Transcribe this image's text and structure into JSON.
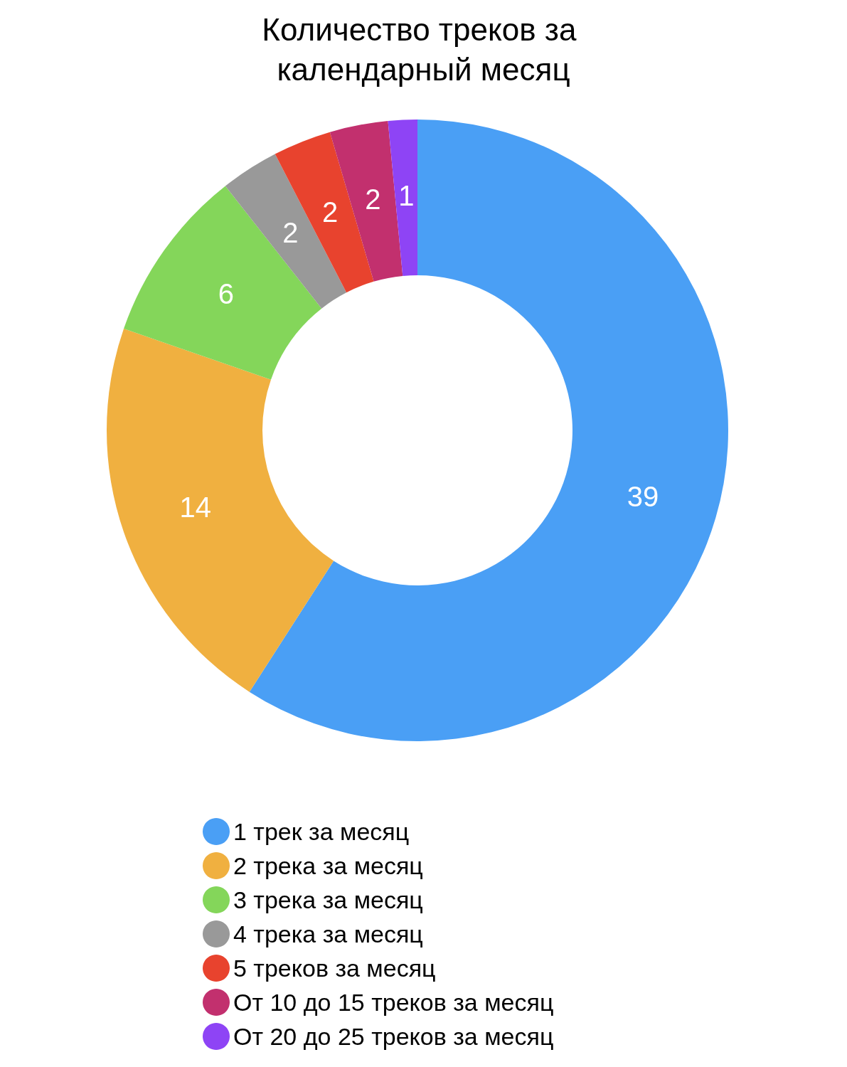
{
  "chart_data": {
    "type": "donut",
    "title": "Количество треков за календарный месяц",
    "categories": [
      "1 трек за месяц",
      "2 трека за месяц",
      "3 трека за месяц",
      "4 трека за месяц",
      "5 треков за месяц",
      "От 10 до 15 треков за месяц",
      "От 20 до 25 треков за месяц"
    ],
    "values": [
      39,
      14,
      6,
      2,
      2,
      2,
      1
    ],
    "colors": [
      "#4a9ff5",
      "#f0b040",
      "#84d65a",
      "#999999",
      "#e8432e",
      "#c2306e",
      "#8e44f5"
    ],
    "data_labels": true,
    "legend": "bottom"
  }
}
